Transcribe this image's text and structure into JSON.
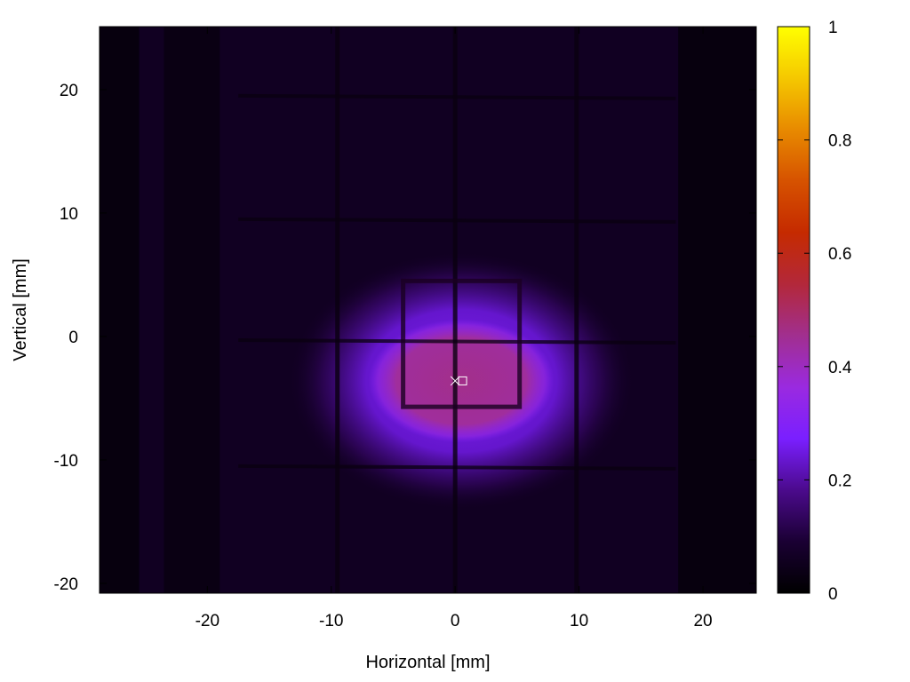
{
  "chart_data": {
    "type": "heatmap",
    "title": "",
    "xlabel": "Horizontal [mm]",
    "ylabel": "Vertical [mm]",
    "xlim": [
      -28.7,
      24.3
    ],
    "ylim": [
      -20.8,
      25.1
    ],
    "x_ticks": [
      -20,
      -10,
      0,
      10,
      20
    ],
    "y_ticks": [
      -20,
      -10,
      0,
      10,
      20
    ],
    "colorbar": {
      "range": [
        0,
        1
      ],
      "ticks": [
        0,
        0.2,
        0.4,
        0.6,
        0.8,
        1
      ],
      "tick_labels": [
        "0",
        "0.2",
        "0.4",
        "0.6",
        "0.8",
        "1"
      ],
      "colormap": [
        "#000000",
        "#1a0033",
        "#4b0a8c",
        "#7a1fff",
        "#9a2ae0",
        "#a12f8f",
        "#b3283a",
        "#c52a00",
        "#d65200",
        "#e88a00",
        "#f5c800",
        "#ffff00"
      ]
    },
    "background_level": 0.06,
    "beam": {
      "center_x": 0.5,
      "center_y": -3.6,
      "peak_level": 0.46,
      "core_half_width_x": 7.5,
      "core_half_width_y": 5.0,
      "halo_half_width_x": 14.0,
      "halo_half_width_y": 10.5
    },
    "grid_wires": {
      "vertical_x": [
        -9.5,
        0,
        9.8
      ],
      "horizontal_y": [
        19.5,
        9.5,
        -0.3,
        -10.5
      ]
    },
    "inner_frame": {
      "x": [
        -4.2,
        5.2
      ],
      "y": [
        -5.7,
        4.5
      ]
    },
    "dark_side_bands": [
      {
        "x": [
          -28.7,
          -25.5
        ],
        "level": 0.02
      },
      {
        "x": [
          -23.5,
          -19.0
        ],
        "level": 0.03
      },
      {
        "x": [
          18.0,
          24.3
        ],
        "level": 0.02
      }
    ],
    "markers": [
      {
        "symbol": "x",
        "x": 0.0,
        "y": -3.6
      },
      {
        "symbol": "square",
        "x": 0.6,
        "y": -3.6
      }
    ]
  }
}
